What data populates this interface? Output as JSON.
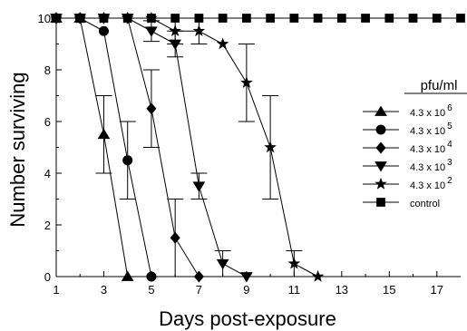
{
  "chart_data": {
    "type": "line",
    "title": "",
    "xlabel": "Days post-exposure",
    "ylabel": "Number surviving",
    "xlim": [
      1,
      18
    ],
    "ylim": [
      0,
      10
    ],
    "xticks": [
      1,
      3,
      5,
      7,
      9,
      11,
      13,
      15,
      17
    ],
    "yticks": [
      0,
      2,
      4,
      6,
      8,
      10
    ],
    "grid": false,
    "legend": {
      "title": "pfu/ml",
      "placement": "right"
    },
    "series": [
      {
        "name": "4.3 x 10",
        "exponent": "6",
        "marker": "triangle-up",
        "x": [
          1,
          2,
          3,
          4
        ],
        "y": [
          10,
          10,
          5.5,
          0
        ],
        "error": [
          0,
          0,
          1.5,
          0
        ]
      },
      {
        "name": "4.3 x 10",
        "exponent": "5",
        "marker": "circle",
        "x": [
          1,
          2,
          3,
          4,
          5
        ],
        "y": [
          10,
          10,
          9.5,
          4.5,
          0
        ],
        "error": [
          0,
          0,
          0,
          1.5,
          0
        ]
      },
      {
        "name": "4.3 x 10",
        "exponent": "4",
        "marker": "diamond",
        "x": [
          1,
          2,
          3,
          4,
          5,
          6,
          7
        ],
        "y": [
          10,
          10,
          10,
          10,
          6.5,
          1.5,
          0
        ],
        "error": [
          0,
          0,
          0,
          0,
          1.5,
          1.5,
          0
        ]
      },
      {
        "name": "4.3 x 10",
        "exponent": "3",
        "marker": "triangle-down",
        "x": [
          1,
          2,
          3,
          4,
          5,
          6,
          7,
          8,
          9
        ],
        "y": [
          10,
          10,
          10,
          10,
          9.5,
          9,
          3.5,
          0.5,
          0
        ],
        "error": [
          0,
          0,
          0,
          0,
          0.4,
          0.5,
          0.5,
          0.5,
          0
        ]
      },
      {
        "name": "4.3 x 10",
        "exponent": "2",
        "marker": "star",
        "x": [
          1,
          2,
          3,
          4,
          5,
          6,
          7,
          8,
          9,
          10,
          11,
          12
        ],
        "y": [
          10,
          10,
          10,
          10,
          10,
          9.5,
          9.5,
          9,
          7.5,
          5,
          0.5,
          0
        ],
        "error": [
          0,
          0,
          0,
          0,
          0,
          0.5,
          0.5,
          0,
          1.5,
          2,
          0.5,
          0
        ]
      },
      {
        "name": "control",
        "exponent": "",
        "marker": "square",
        "x": [
          1,
          2,
          3,
          4,
          5,
          6,
          7,
          8,
          9,
          10,
          11,
          12,
          13,
          14,
          15,
          16,
          17,
          18
        ],
        "y": [
          10,
          10,
          10,
          10,
          10,
          10,
          10,
          10,
          10,
          10,
          10,
          10,
          10,
          10,
          10,
          10,
          10,
          10
        ],
        "error": [
          0,
          0,
          0,
          0,
          0,
          0,
          0,
          0,
          0,
          0,
          0,
          0,
          0,
          0,
          0,
          0,
          0,
          0
        ]
      }
    ]
  }
}
